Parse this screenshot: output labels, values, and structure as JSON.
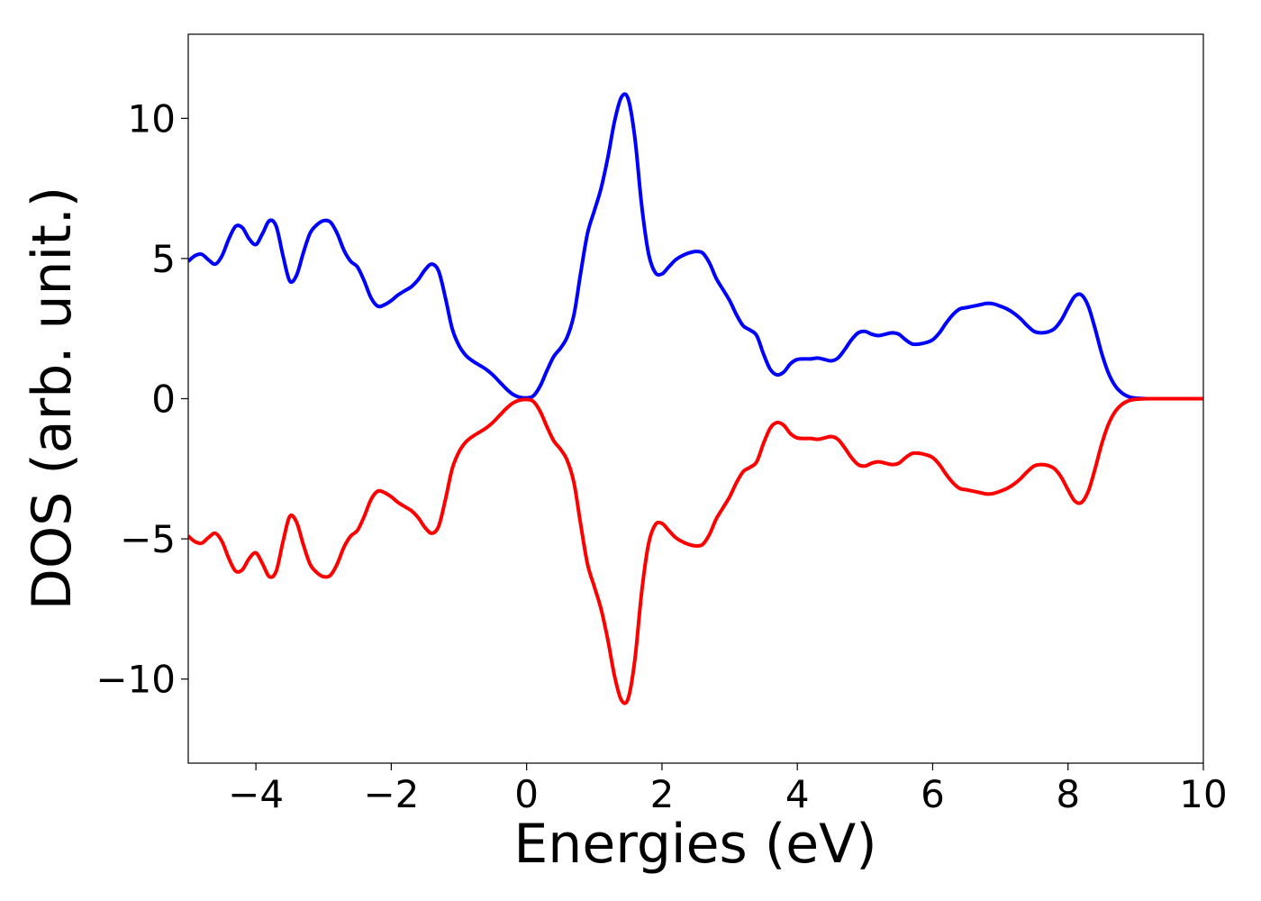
{
  "chart_data": {
    "type": "line",
    "title": "",
    "xlabel": "Energies (eV)",
    "ylabel": "DOS (arb. unit.)",
    "xlim": [
      -5,
      10
    ],
    "ylim": [
      -13,
      13
    ],
    "xticks": [
      -4,
      -2,
      0,
      2,
      4,
      6,
      8,
      10
    ],
    "xtick_labels": [
      "−4",
      "−2",
      "0",
      "2",
      "4",
      "6",
      "8",
      "10"
    ],
    "yticks": [
      -10,
      -5,
      0,
      5,
      10
    ],
    "ytick_labels": [
      "−10",
      "−5",
      "0",
      "5",
      "10"
    ],
    "grid": false,
    "legend": false,
    "series": [
      {
        "color": "#0000ff",
        "points": [
          [
            -5.0,
            4.9
          ],
          [
            -4.9,
            5.1
          ],
          [
            -4.8,
            5.15
          ],
          [
            -4.7,
            4.95
          ],
          [
            -4.6,
            4.8
          ],
          [
            -4.5,
            5.1
          ],
          [
            -4.4,
            5.7
          ],
          [
            -4.3,
            6.15
          ],
          [
            -4.2,
            6.1
          ],
          [
            -4.1,
            5.7
          ],
          [
            -4.0,
            5.5
          ],
          [
            -3.9,
            5.9
          ],
          [
            -3.8,
            6.35
          ],
          [
            -3.7,
            6.15
          ],
          [
            -3.6,
            5.1
          ],
          [
            -3.5,
            4.2
          ],
          [
            -3.4,
            4.4
          ],
          [
            -3.3,
            5.2
          ],
          [
            -3.2,
            5.9
          ],
          [
            -3.1,
            6.2
          ],
          [
            -3.0,
            6.35
          ],
          [
            -2.9,
            6.3
          ],
          [
            -2.8,
            5.9
          ],
          [
            -2.7,
            5.3
          ],
          [
            -2.6,
            4.9
          ],
          [
            -2.5,
            4.7
          ],
          [
            -2.4,
            4.2
          ],
          [
            -2.3,
            3.6
          ],
          [
            -2.2,
            3.3
          ],
          [
            -2.1,
            3.35
          ],
          [
            -2.0,
            3.5
          ],
          [
            -1.9,
            3.7
          ],
          [
            -1.8,
            3.85
          ],
          [
            -1.7,
            4.0
          ],
          [
            -1.6,
            4.25
          ],
          [
            -1.5,
            4.6
          ],
          [
            -1.4,
            4.8
          ],
          [
            -1.3,
            4.55
          ],
          [
            -1.2,
            3.6
          ],
          [
            -1.1,
            2.5
          ],
          [
            -1.0,
            1.9
          ],
          [
            -0.9,
            1.55
          ],
          [
            -0.8,
            1.35
          ],
          [
            -0.7,
            1.2
          ],
          [
            -0.6,
            1.05
          ],
          [
            -0.5,
            0.85
          ],
          [
            -0.4,
            0.6
          ],
          [
            -0.3,
            0.35
          ],
          [
            -0.2,
            0.15
          ],
          [
            -0.1,
            0.05
          ],
          [
            0.0,
            0.03
          ],
          [
            0.1,
            0.1
          ],
          [
            0.2,
            0.45
          ],
          [
            0.3,
            1.0
          ],
          [
            0.4,
            1.5
          ],
          [
            0.5,
            1.8
          ],
          [
            0.6,
            2.2
          ],
          [
            0.7,
            3.0
          ],
          [
            0.8,
            4.5
          ],
          [
            0.9,
            5.9
          ],
          [
            1.0,
            6.7
          ],
          [
            1.1,
            7.5
          ],
          [
            1.2,
            8.6
          ],
          [
            1.3,
            9.9
          ],
          [
            1.4,
            10.75
          ],
          [
            1.5,
            10.7
          ],
          [
            1.6,
            9.3
          ],
          [
            1.7,
            6.9
          ],
          [
            1.8,
            5.2
          ],
          [
            1.9,
            4.5
          ],
          [
            2.0,
            4.45
          ],
          [
            2.1,
            4.7
          ],
          [
            2.2,
            4.95
          ],
          [
            2.3,
            5.1
          ],
          [
            2.4,
            5.2
          ],
          [
            2.5,
            5.25
          ],
          [
            2.6,
            5.2
          ],
          [
            2.7,
            4.85
          ],
          [
            2.8,
            4.3
          ],
          [
            2.9,
            3.9
          ],
          [
            3.0,
            3.5
          ],
          [
            3.1,
            3.0
          ],
          [
            3.2,
            2.6
          ],
          [
            3.3,
            2.45
          ],
          [
            3.4,
            2.25
          ],
          [
            3.5,
            1.6
          ],
          [
            3.6,
            1.05
          ],
          [
            3.7,
            0.85
          ],
          [
            3.8,
            0.95
          ],
          [
            3.9,
            1.25
          ],
          [
            4.0,
            1.4
          ],
          [
            4.1,
            1.42
          ],
          [
            4.2,
            1.42
          ],
          [
            4.3,
            1.45
          ],
          [
            4.4,
            1.4
          ],
          [
            4.5,
            1.35
          ],
          [
            4.6,
            1.45
          ],
          [
            4.7,
            1.75
          ],
          [
            4.8,
            2.1
          ],
          [
            4.9,
            2.35
          ],
          [
            5.0,
            2.4
          ],
          [
            5.1,
            2.3
          ],
          [
            5.2,
            2.25
          ],
          [
            5.3,
            2.3
          ],
          [
            5.4,
            2.35
          ],
          [
            5.5,
            2.3
          ],
          [
            5.6,
            2.1
          ],
          [
            5.7,
            1.95
          ],
          [
            5.8,
            1.95
          ],
          [
            5.9,
            2.0
          ],
          [
            6.0,
            2.1
          ],
          [
            6.1,
            2.35
          ],
          [
            6.2,
            2.7
          ],
          [
            6.3,
            3.0
          ],
          [
            6.4,
            3.2
          ],
          [
            6.5,
            3.25
          ],
          [
            6.6,
            3.3
          ],
          [
            6.7,
            3.35
          ],
          [
            6.8,
            3.4
          ],
          [
            6.9,
            3.38
          ],
          [
            7.0,
            3.3
          ],
          [
            7.1,
            3.2
          ],
          [
            7.2,
            3.05
          ],
          [
            7.3,
            2.85
          ],
          [
            7.4,
            2.6
          ],
          [
            7.5,
            2.4
          ],
          [
            7.6,
            2.35
          ],
          [
            7.7,
            2.38
          ],
          [
            7.8,
            2.5
          ],
          [
            7.9,
            2.8
          ],
          [
            8.0,
            3.25
          ],
          [
            8.1,
            3.65
          ],
          [
            8.2,
            3.7
          ],
          [
            8.3,
            3.3
          ],
          [
            8.4,
            2.5
          ],
          [
            8.5,
            1.6
          ],
          [
            8.6,
            0.9
          ],
          [
            8.7,
            0.45
          ],
          [
            8.8,
            0.2
          ],
          [
            8.9,
            0.07
          ],
          [
            9.0,
            0.02
          ],
          [
            9.2,
            0.0
          ],
          [
            9.5,
            0.0
          ],
          [
            10.0,
            0.0
          ]
        ]
      },
      {
        "color": "#ff0000",
        "mirror_of_series": 0
      }
    ]
  }
}
